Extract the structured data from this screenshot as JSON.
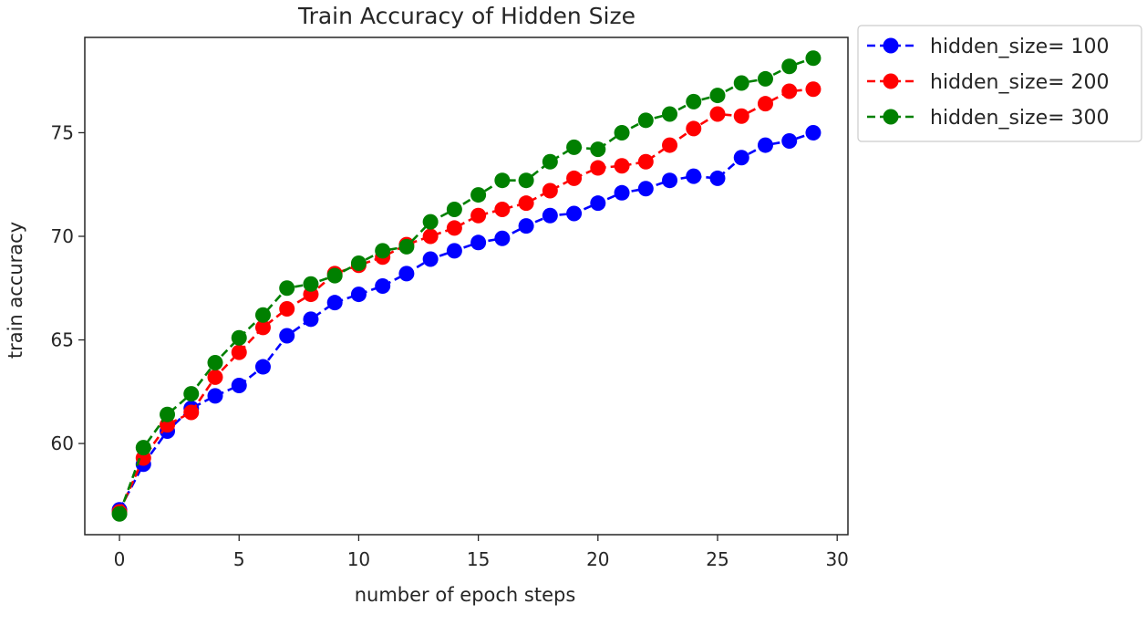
{
  "chart_data": {
    "type": "line",
    "title": "Train Accuracy of Hidden Size",
    "xlabel": "number of epoch steps",
    "ylabel": "train accuracy",
    "xlim": [
      -1.45,
      30.45
    ],
    "ylim": [
      55.6,
      79.6
    ],
    "x_ticks": [
      0,
      5,
      10,
      15,
      20,
      25,
      30
    ],
    "y_ticks": [
      60,
      65,
      70,
      75
    ],
    "grid": false,
    "legend_position": "outside-top-right",
    "line_style": "dashed",
    "marker": "circle",
    "x": [
      0,
      1,
      2,
      3,
      4,
      5,
      6,
      7,
      8,
      9,
      10,
      11,
      12,
      13,
      14,
      15,
      16,
      17,
      18,
      19,
      20,
      21,
      22,
      23,
      24,
      25,
      26,
      27,
      28,
      29
    ],
    "series": [
      {
        "name": "hidden_size= 100",
        "color": "#0000ff",
        "values": [
          56.8,
          59.0,
          60.6,
          61.7,
          62.3,
          62.8,
          63.7,
          65.2,
          66.0,
          66.8,
          67.2,
          67.6,
          68.2,
          68.9,
          69.3,
          69.7,
          69.9,
          70.5,
          71.0,
          71.1,
          71.6,
          72.1,
          72.3,
          72.7,
          72.9,
          72.8,
          73.8,
          74.4,
          74.6,
          75.0
        ]
      },
      {
        "name": "hidden_size= 200",
        "color": "#ff0000",
        "values": [
          56.7,
          59.3,
          60.9,
          61.5,
          63.2,
          64.4,
          65.6,
          66.5,
          67.2,
          68.2,
          68.6,
          69.0,
          69.6,
          70.0,
          70.4,
          71.0,
          71.3,
          71.6,
          72.2,
          72.8,
          73.3,
          73.4,
          73.6,
          74.4,
          75.2,
          75.9,
          75.8,
          76.4,
          77.0,
          77.1
        ]
      },
      {
        "name": "hidden_size= 300",
        "color": "#008000",
        "values": [
          56.6,
          59.8,
          61.4,
          62.4,
          63.9,
          65.1,
          66.2,
          67.5,
          67.7,
          68.1,
          68.7,
          69.3,
          69.5,
          70.7,
          71.3,
          72.0,
          72.7,
          72.7,
          73.6,
          74.3,
          74.2,
          75.0,
          75.6,
          75.9,
          76.5,
          76.8,
          77.4,
          77.6,
          78.2,
          78.6
        ]
      }
    ]
  }
}
